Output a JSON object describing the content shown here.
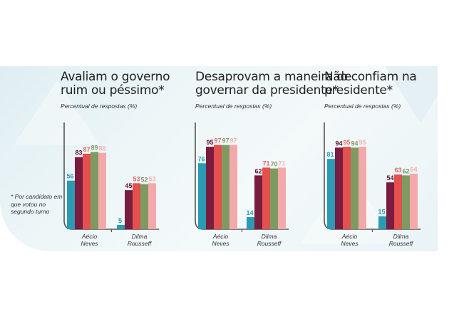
{
  "footnote": "* Por candidato em que votou no segundo turno",
  "series_colors": [
    "#2a9bb3",
    "#7a1c3f",
    "#e4504e",
    "#7f9a61",
    "#f3a9a9"
  ],
  "label_colors": [
    "#2a9bb3",
    "#5a1530",
    "#d66b6b",
    "#7f9a61",
    "#f1b3b0"
  ],
  "chart_data": [
    {
      "type": "bar",
      "title": "Avaliam o governo ruim ou péssimo*",
      "title_lines": [
        "Avaliam o governo",
        "ruim ou péssimo*"
      ],
      "subtitle": "Percentual de respostas (%)",
      "categories": [
        "Aécio Neves",
        "Dilma Rousseff"
      ],
      "category_lines": [
        [
          "Aécio",
          "Neves"
        ],
        [
          "Dilma",
          "Rousseff"
        ]
      ],
      "series": [
        {
          "name": "series-1",
          "values": [
            56,
            5
          ]
        },
        {
          "name": "series-2",
          "values": [
            83,
            45
          ]
        },
        {
          "name": "series-3",
          "values": [
            87,
            53
          ]
        },
        {
          "name": "series-4",
          "values": [
            89,
            52
          ]
        },
        {
          "name": "series-5",
          "values": [
            88,
            53
          ]
        }
      ],
      "ylim": [
        0,
        100
      ],
      "grid": false,
      "legend": "none"
    },
    {
      "type": "bar",
      "title": "Desaprovam a maneira de governar da presidente*",
      "title_lines": [
        "Desaprovam a maneira de",
        "governar da presidente*"
      ],
      "subtitle": "Percentual de respostas (%)",
      "categories": [
        "Aécio Neves",
        "Dilma Rousseff"
      ],
      "category_lines": [
        [
          "Aécio",
          "Neves"
        ],
        [
          "Dilma",
          "Rousseff"
        ]
      ],
      "series": [
        {
          "name": "series-1",
          "values": [
            76,
            14
          ]
        },
        {
          "name": "series-2",
          "values": [
            95,
            62
          ]
        },
        {
          "name": "series-3",
          "values": [
            97,
            71
          ]
        },
        {
          "name": "series-4",
          "values": [
            97,
            70
          ]
        },
        {
          "name": "series-5",
          "values": [
            97,
            71
          ]
        }
      ],
      "ylim": [
        0,
        100
      ],
      "grid": false,
      "legend": "none"
    },
    {
      "type": "bar",
      "title": "Não confiam na presidente*",
      "title_lines": [
        "Não confiam na",
        "presidente*"
      ],
      "subtitle": "Percentual de respostas (%)",
      "categories": [
        "Aécio Neves",
        "Dilma Rousseff"
      ],
      "category_lines": [
        [
          "Aécio",
          "Neves"
        ],
        [
          "Dilma",
          "Rousseff"
        ]
      ],
      "series": [
        {
          "name": "series-1",
          "values": [
            81,
            15
          ]
        },
        {
          "name": "series-2",
          "values": [
            94,
            54
          ]
        },
        {
          "name": "series-3",
          "values": [
            95,
            63
          ]
        },
        {
          "name": "series-4",
          "values": [
            94,
            62
          ]
        },
        {
          "name": "series-5",
          "values": [
            95,
            64
          ]
        }
      ],
      "ylim": [
        0,
        100
      ],
      "grid": false,
      "legend": "none"
    }
  ]
}
